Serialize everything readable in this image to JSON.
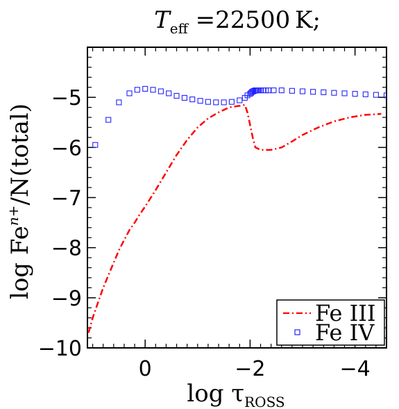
{
  "chart_data": {
    "type": "line",
    "title_main": "T",
    "title_sub": "eff",
    "title_rest": " =22500 K;",
    "ylabel_prefix": "log Fe",
    "ylabel_sup": "n+",
    "ylabel_suffix": "/N(total)",
    "xlabel_prefix": "log τ",
    "xlabel_sub": "ROSS",
    "xlim": [
      1.1,
      -4.6
    ],
    "ylim": [
      -10.0,
      -4.0
    ],
    "xticks": [
      0,
      -2,
      -4
    ],
    "xtick_labels": [
      "0",
      "−2",
      "−4"
    ],
    "yticks": [
      -5,
      -6,
      -7,
      -8,
      -9,
      -10
    ],
    "ytick_labels": [
      "−5",
      "−6",
      "−7",
      "−8",
      "−9",
      "−10"
    ],
    "legend_position": "bottom-right",
    "series": [
      {
        "name": "Fe III",
        "style": "dash-dot",
        "color": "#ff0000",
        "x": [
          1.08,
          1.0,
          0.9,
          0.8,
          0.7,
          0.6,
          0.5,
          0.4,
          0.3,
          0.2,
          0.1,
          0.0,
          -0.2,
          -0.4,
          -0.6,
          -0.8,
          -1.0,
          -1.2,
          -1.4,
          -1.6,
          -1.8,
          -1.9,
          -1.95,
          -2.0,
          -2.05,
          -2.1,
          -2.2,
          -2.4,
          -2.6,
          -2.8,
          -3.0,
          -3.3,
          -3.6,
          -3.9,
          -4.2,
          -4.5
        ],
        "y": [
          -9.7,
          -9.4,
          -9.1,
          -8.8,
          -8.55,
          -8.3,
          -8.05,
          -7.85,
          -7.65,
          -7.5,
          -7.33,
          -7.18,
          -6.85,
          -6.5,
          -6.15,
          -5.85,
          -5.6,
          -5.42,
          -5.3,
          -5.2,
          -5.17,
          -5.15,
          -5.3,
          -5.55,
          -5.8,
          -6.0,
          -6.05,
          -6.05,
          -6.0,
          -5.88,
          -5.75,
          -5.6,
          -5.48,
          -5.4,
          -5.35,
          -5.33
        ]
      },
      {
        "name": "Fe IV",
        "style": "open-square",
        "color": "#2222ff",
        "x": [
          0.95,
          0.7,
          0.5,
          0.3,
          0.15,
          0.0,
          -0.15,
          -0.3,
          -0.45,
          -0.6,
          -0.75,
          -0.9,
          -1.05,
          -1.2,
          -1.35,
          -1.5,
          -1.65,
          -1.8,
          -1.9,
          -1.95,
          -2.0,
          -2.02,
          -2.04,
          -2.06,
          -2.08,
          -2.1,
          -2.12,
          -2.14,
          -2.17,
          -2.2,
          -2.25,
          -2.3,
          -2.35,
          -2.45,
          -2.6,
          -2.8,
          -3.0,
          -3.2,
          -3.4,
          -3.6,
          -3.8,
          -4.0,
          -4.2,
          -4.4,
          -4.6
        ],
        "y": [
          -5.95,
          -5.45,
          -5.1,
          -4.92,
          -4.85,
          -4.83,
          -4.85,
          -4.88,
          -4.92,
          -4.97,
          -5.01,
          -5.04,
          -5.07,
          -5.09,
          -5.1,
          -5.1,
          -5.09,
          -5.06,
          -5.01,
          -4.96,
          -4.93,
          -4.91,
          -4.89,
          -4.88,
          -4.87,
          -4.86,
          -4.86,
          -4.86,
          -4.86,
          -4.86,
          -4.86,
          -4.86,
          -4.86,
          -4.86,
          -4.86,
          -4.87,
          -4.88,
          -4.89,
          -4.9,
          -4.91,
          -4.92,
          -4.93,
          -4.94,
          -4.95,
          -4.96
        ]
      }
    ]
  }
}
